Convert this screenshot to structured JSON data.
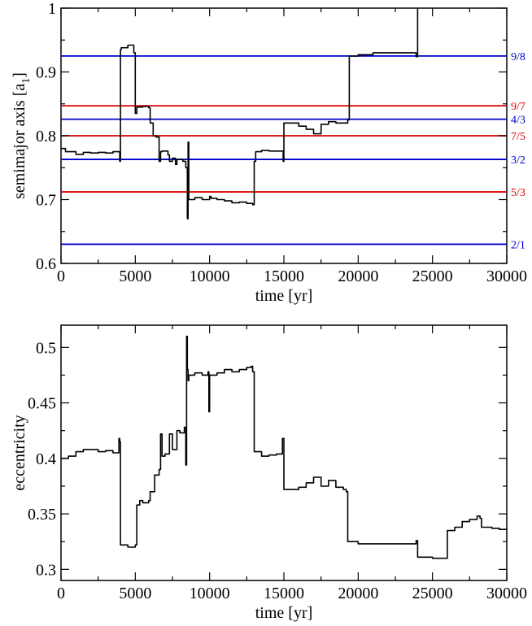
{
  "chart_data": [
    {
      "type": "line",
      "xlabel": "time  [yr]",
      "ylabel": "semimajor axis  [a",
      "ylabel_sub": "1",
      "ylabel_close": "]",
      "xlim": [
        0,
        30000
      ],
      "ylim": [
        0.6,
        1.0
      ],
      "xticks": [
        0,
        5000,
        10000,
        15000,
        20000,
        25000,
        30000
      ],
      "xtick_labels": [
        "0",
        "5000",
        "10000",
        "15000",
        "20000",
        "25000",
        "30000"
      ],
      "yticks": [
        0.6,
        0.7,
        0.8,
        0.9,
        1.0
      ],
      "ytick_labels": [
        "0.6",
        "0.7",
        "0.8",
        "0.9",
        "1"
      ],
      "resonances": [
        {
          "label": "9/8",
          "value": 0.925,
          "color": "#0000cc"
        },
        {
          "label": "9/7",
          "value": 0.847,
          "color": "#dd0000"
        },
        {
          "label": "4/3",
          "value": 0.826,
          "color": "#0000cc"
        },
        {
          "label": "7/5",
          "value": 0.8,
          "color": "#dd0000"
        },
        {
          "label": "3/2",
          "value": 0.763,
          "color": "#0000cc"
        },
        {
          "label": "5/3",
          "value": 0.712,
          "color": "#dd0000"
        },
        {
          "label": "2/1",
          "value": 0.63,
          "color": "#0000cc"
        }
      ],
      "x": [
        0,
        300,
        1000,
        1500,
        2000,
        2500,
        3000,
        3500,
        3950,
        4000,
        4050,
        4500,
        4900,
        5000,
        5100,
        5500,
        5900,
        6000,
        6200,
        6400,
        6600,
        6700,
        6800,
        7200,
        7300,
        7500,
        7700,
        7800,
        8200,
        8400,
        8500,
        8550,
        8600,
        9000,
        9500,
        10000,
        10100,
        10500,
        11000,
        11500,
        12000,
        12500,
        12900,
        13000,
        13100,
        13500,
        14000,
        14500,
        14950,
        15000,
        15500,
        16000,
        16500,
        17000,
        17500,
        18000,
        18500,
        19000,
        19300,
        19400,
        20000,
        21000,
        22000,
        23000,
        23900,
        24000
      ],
      "y": [
        0.78,
        0.775,
        0.771,
        0.774,
        0.773,
        0.774,
        0.773,
        0.775,
        0.76,
        0.935,
        0.938,
        0.942,
        0.93,
        0.835,
        0.845,
        0.846,
        0.844,
        0.82,
        0.8,
        0.798,
        0.76,
        0.775,
        0.776,
        0.77,
        0.76,
        0.765,
        0.755,
        0.763,
        0.76,
        0.75,
        0.67,
        0.79,
        0.7,
        0.703,
        0.7,
        0.705,
        0.702,
        0.7,
        0.698,
        0.695,
        0.696,
        0.694,
        0.692,
        0.76,
        0.775,
        0.777,
        0.776,
        0.776,
        0.76,
        0.82,
        0.82,
        0.815,
        0.81,
        0.803,
        0.818,
        0.822,
        0.82,
        0.82,
        0.825,
        0.925,
        0.927,
        0.93,
        0.93,
        0.93,
        0.924,
        1.0
      ]
    },
    {
      "type": "line",
      "xlabel": "time  [yr]",
      "ylabel": "eccentricity",
      "xlim": [
        0,
        30000
      ],
      "ylim": [
        0.29,
        0.52
      ],
      "xticks": [
        0,
        5000,
        10000,
        15000,
        20000,
        25000,
        30000
      ],
      "xtick_labels": [
        "0",
        "5000",
        "10000",
        "15000",
        "20000",
        "25000",
        "30000"
      ],
      "yticks": [
        0.3,
        0.35,
        0.4,
        0.45,
        0.5
      ],
      "ytick_labels": [
        "0.3",
        "0.35",
        "0.4",
        "0.45",
        "0.5"
      ],
      "x": [
        0,
        500,
        1000,
        1500,
        2000,
        2500,
        3000,
        3500,
        3900,
        3950,
        4000,
        4500,
        5000,
        5100,
        5300,
        5500,
        5900,
        6000,
        6300,
        6600,
        6700,
        6800,
        7000,
        7300,
        7500,
        7800,
        8000,
        8300,
        8400,
        8450,
        8500,
        8550,
        8600,
        9000,
        9500,
        9900,
        9950,
        10000,
        10500,
        11000,
        11500,
        12000,
        12500,
        12800,
        12900,
        13000,
        13500,
        14000,
        14500,
        14900,
        15000,
        15500,
        16000,
        16500,
        17000,
        17500,
        18000,
        18500,
        19000,
        19200,
        19300,
        20000,
        21000,
        22000,
        23000,
        23800,
        23900,
        24000,
        25000,
        25900,
        26000,
        26500,
        27000,
        27500,
        28000,
        28200,
        28300,
        29000,
        29500,
        30000
      ],
      "y": [
        0.4,
        0.402,
        0.406,
        0.408,
        0.408,
        0.406,
        0.407,
        0.405,
        0.418,
        0.415,
        0.322,
        0.32,
        0.322,
        0.358,
        0.362,
        0.36,
        0.362,
        0.37,
        0.385,
        0.39,
        0.422,
        0.402,
        0.404,
        0.422,
        0.408,
        0.425,
        0.423,
        0.428,
        0.394,
        0.51,
        0.48,
        0.47,
        0.475,
        0.477,
        0.475,
        0.478,
        0.442,
        0.475,
        0.477,
        0.48,
        0.478,
        0.48,
        0.482,
        0.483,
        0.478,
        0.406,
        0.402,
        0.403,
        0.404,
        0.418,
        0.372,
        0.372,
        0.374,
        0.378,
        0.383,
        0.375,
        0.38,
        0.374,
        0.372,
        0.37,
        0.325,
        0.323,
        0.323,
        0.323,
        0.323,
        0.323,
        0.326,
        0.311,
        0.31,
        0.31,
        0.335,
        0.338,
        0.343,
        0.345,
        0.348,
        0.346,
        0.338,
        0.337,
        0.336,
        0.336
      ]
    }
  ]
}
